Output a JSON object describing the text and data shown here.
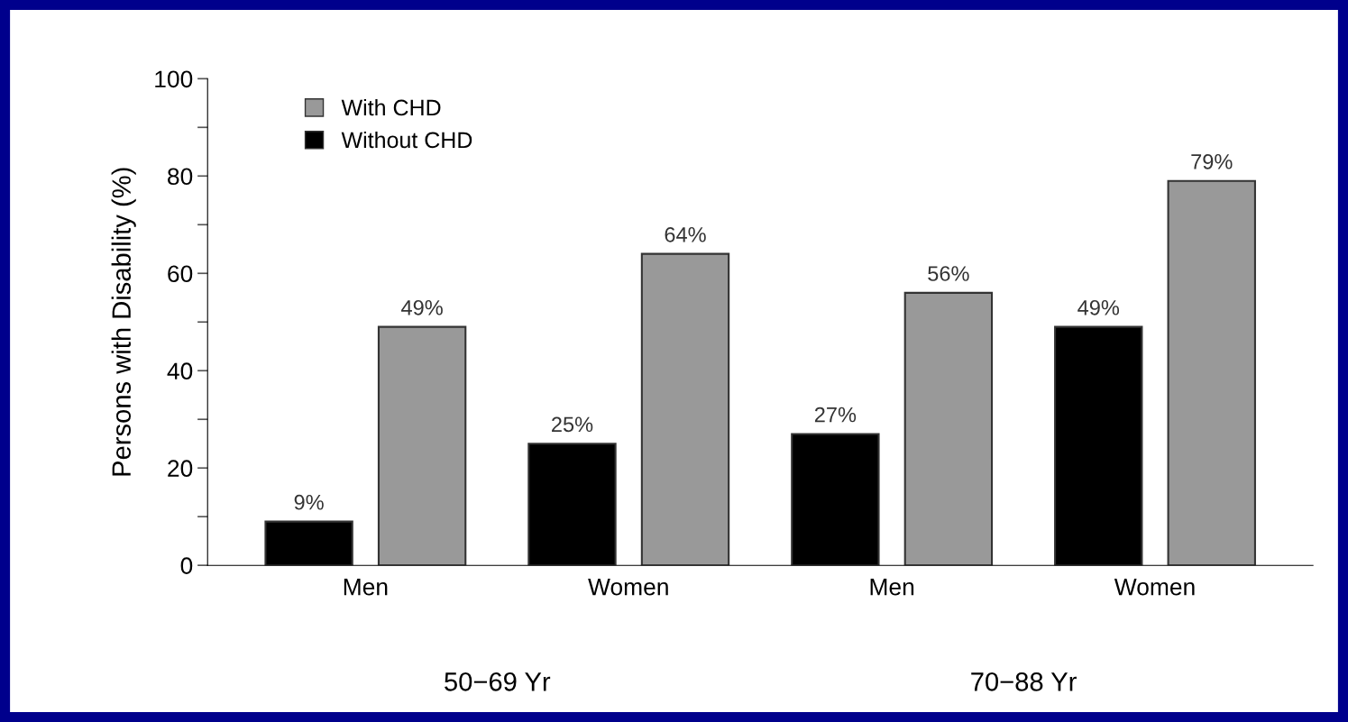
{
  "chart_data": {
    "type": "bar",
    "categories": [
      "Men",
      "Women",
      "Men",
      "Women"
    ],
    "ylabel": "Persons with Disability (%)",
    "series": [
      {
        "name": "Without CHD",
        "color": "#000000",
        "values": [
          9,
          25,
          27,
          49
        ],
        "value_labels": [
          "9%",
          "25%",
          "27%",
          "49%"
        ]
      },
      {
        "name": "With CHD",
        "color": "#999999",
        "values": [
          49,
          64,
          56,
          79
        ],
        "value_labels": [
          "49%",
          "64%",
          "56%",
          "79%"
        ]
      }
    ],
    "annotations": [
      "50−69 Yr",
      "70−88 Yr"
    ],
    "ylim": [
      0,
      100
    ],
    "yticks": [
      0,
      {
        "value": 10,
        "label": null
      },
      20,
      {
        "value": 30,
        "label": null
      },
      40,
      {
        "value": 50,
        "label": null
      },
      60,
      {
        "value": 70,
        "label": null
      },
      80,
      {
        "value": 90,
        "label": null
      },
      100
    ],
    "legend": "top left",
    "grid": false
  }
}
